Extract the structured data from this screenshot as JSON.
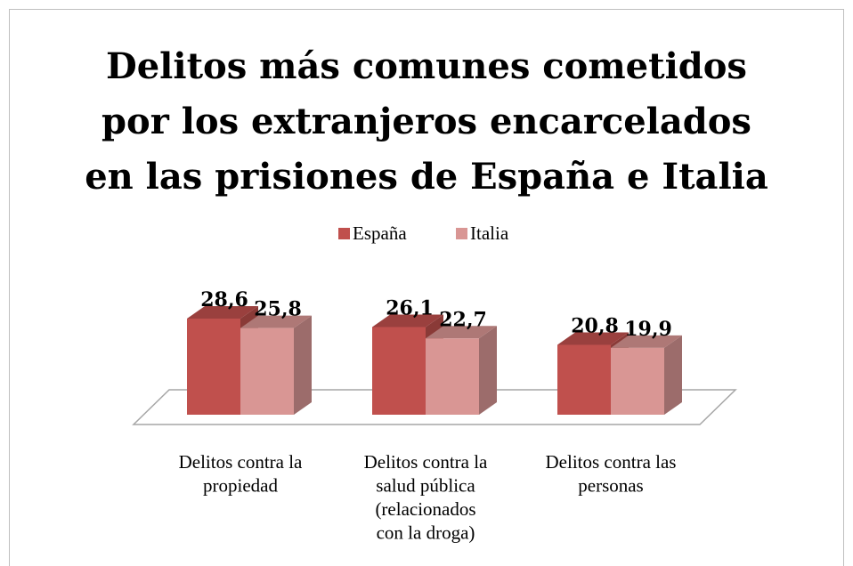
{
  "chart_data": {
    "type": "bar3d",
    "title": [
      "Delitos más comunes cometidos",
      "por los extranjeros encarcelados",
      "en las prisiones de España e Italia"
    ],
    "categories": [
      [
        "Delitos contra la",
        "propiedad"
      ],
      [
        "Delitos contra la",
        "salud pública",
        "(relacionados",
        "con la droga)"
      ],
      [
        "Delitos contra las",
        "personas"
      ]
    ],
    "series": [
      {
        "name": "España",
        "color": "#c0504d",
        "values": [
          28.6,
          26.1,
          20.8
        ],
        "value_labels": [
          "28,6",
          "26,1",
          "20,8"
        ]
      },
      {
        "name": "Italia",
        "color": "#d99694",
        "values": [
          25.8,
          22.7,
          19.9
        ],
        "value_labels": [
          "25,8",
          "22,7",
          "19,9"
        ]
      }
    ],
    "legend": "top"
  }
}
